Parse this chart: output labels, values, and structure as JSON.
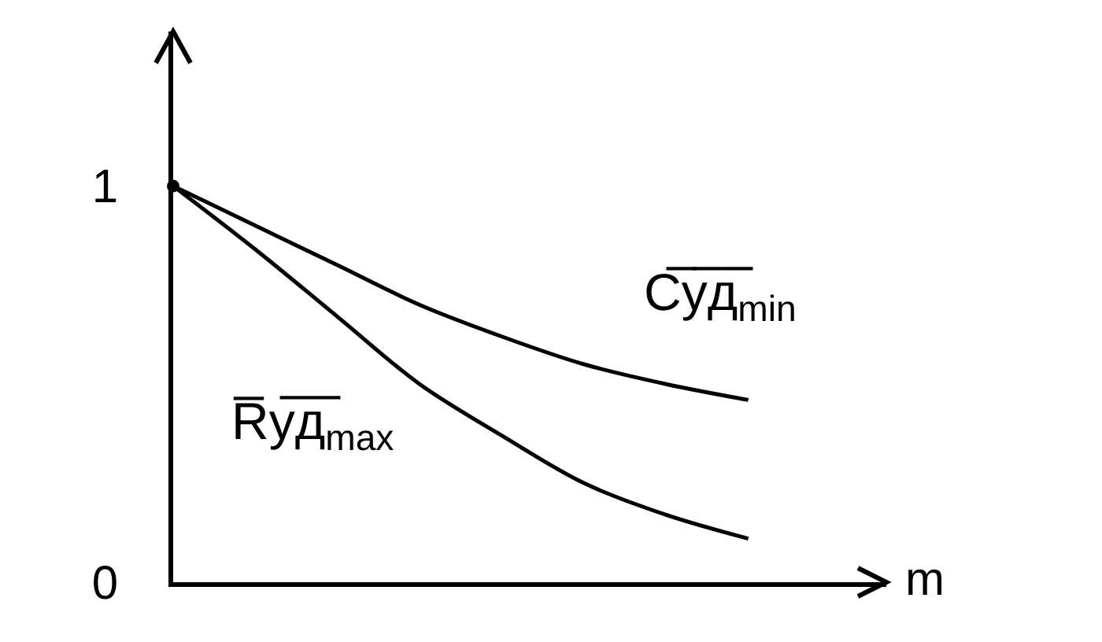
{
  "chart_data": {
    "type": "line",
    "categories": [
      null,
      null,
      null,
      null,
      null,
      null,
      null,
      null
    ],
    "xlabel": "m",
    "ylim": [
      0,
      1.39
    ],
    "yticks": [
      0,
      1
    ],
    "tick_labels": "y",
    "line_style": "solid",
    "series": [
      {
        "name": "С̅у̅д̅$_{min}$",
        "color": "#000000",
        "values": [
          1,
          0.9,
          0.8,
          0.7,
          0.62,
          0.55,
          0.5,
          0.46
        ]
      },
      {
        "name": "R̅у̅д̅$_{max}$",
        "color": "#000000",
        "values": [
          1,
          0.84,
          0.67,
          0.5,
          0.37,
          0.25,
          0.17,
          0.11
        ]
      },
      {
        "type": "scatter",
        "marker": "circle",
        "color": "#000000",
        "values": [
          1,
          null,
          null,
          null,
          null,
          null,
          null,
          null
        ]
      }
    ]
  }
}
